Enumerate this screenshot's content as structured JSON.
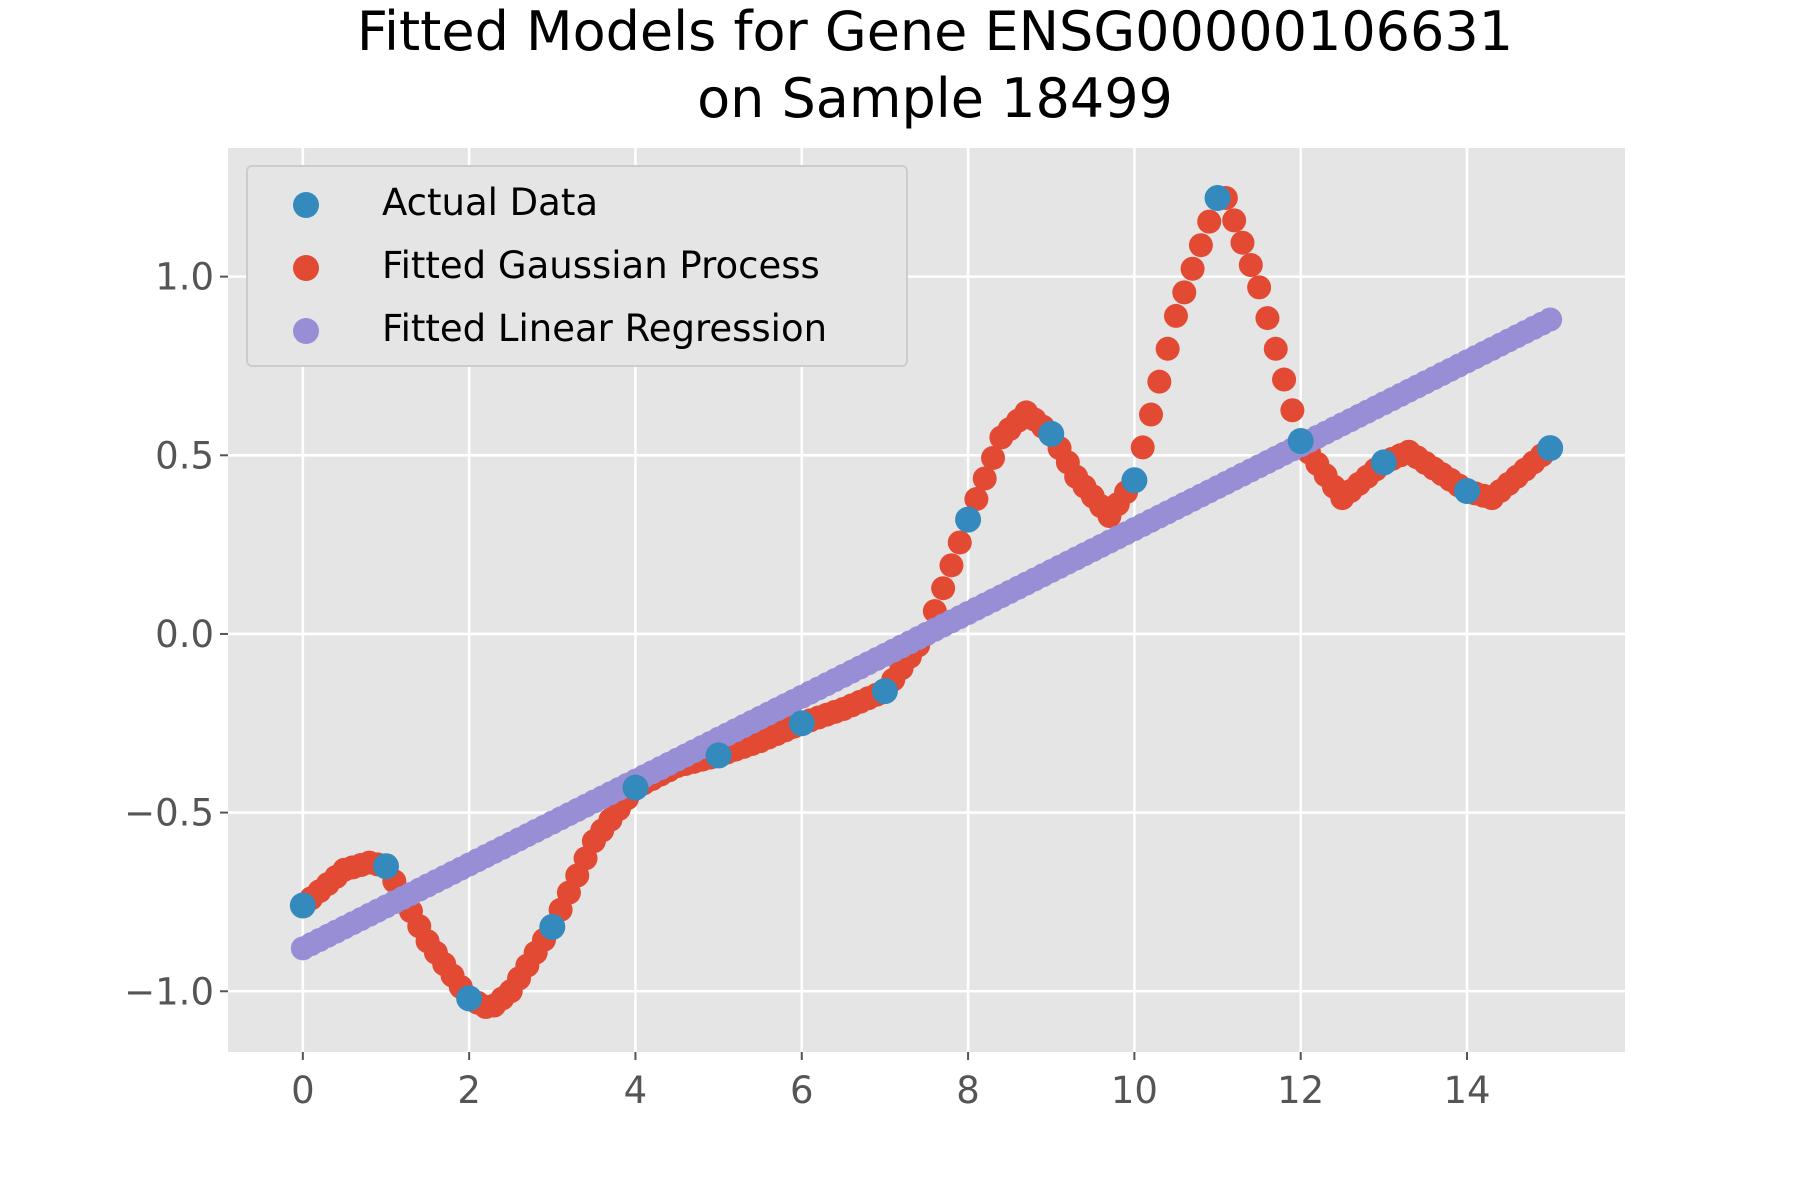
{
  "chart_data": {
    "type": "scatter",
    "title": "Fitted Models for Gene ENSG00000106631",
    "subtitle": "on Sample 18499",
    "xlabel": "",
    "ylabel": "",
    "xlim": [
      -0.9,
      15.9
    ],
    "ylim": [
      -1.17,
      1.36
    ],
    "xticks": [
      0,
      2,
      4,
      6,
      8,
      10,
      12,
      14
    ],
    "yticks": [
      -1.0,
      -0.5,
      0.0,
      0.5,
      1.0
    ],
    "xtick_labels": [
      "0",
      "2",
      "4",
      "6",
      "8",
      "10",
      "12",
      "14"
    ],
    "ytick_labels": [
      "−1.0",
      "−0.5",
      "0.0",
      "0.5",
      "1.0"
    ],
    "grid": true,
    "background": "#e5e5e5",
    "legend_position": "top-left",
    "series": [
      {
        "name": "Actual Data",
        "color": "#348abd",
        "x": [
          0,
          1,
          2,
          3,
          4,
          5,
          6,
          7,
          8,
          9,
          10,
          11,
          12,
          13,
          14,
          15
        ],
        "y": [
          -0.76,
          -0.65,
          -1.02,
          -0.82,
          -0.43,
          -0.34,
          -0.25,
          -0.16,
          0.32,
          0.56,
          0.43,
          1.22,
          0.54,
          0.48,
          0.4,
          0.52
        ]
      },
      {
        "name": "Fitted Gaussian Process",
        "color": "#e24a33",
        "x": [
          0,
          0.5,
          0.8,
          1,
          1.5,
          2,
          2.25,
          2.5,
          3,
          3.5,
          4,
          4.5,
          5,
          5.5,
          6,
          6.5,
          7,
          7.5,
          8,
          8.4,
          8.7,
          9,
          9.3,
          9.7,
          10,
          10.5,
          11,
          11.1,
          11.5,
          12,
          12.5,
          13,
          13.3,
          14,
          14.3,
          15
        ],
        "y": [
          -0.76,
          -0.66,
          -0.64,
          -0.65,
          -0.86,
          -1.02,
          -1.05,
          -1.0,
          -0.82,
          -0.58,
          -0.43,
          -0.37,
          -0.34,
          -0.3,
          -0.25,
          -0.21,
          -0.16,
          0.0,
          0.32,
          0.55,
          0.62,
          0.56,
          0.44,
          0.33,
          0.43,
          0.89,
          1.22,
          1.22,
          0.97,
          0.54,
          0.38,
          0.48,
          0.51,
          0.4,
          0.38,
          0.52
        ]
      },
      {
        "name": "Fitted Linear Regression",
        "color": "#988ed5",
        "x": [
          0,
          15
        ],
        "y": [
          -0.88,
          0.88
        ]
      }
    ]
  }
}
